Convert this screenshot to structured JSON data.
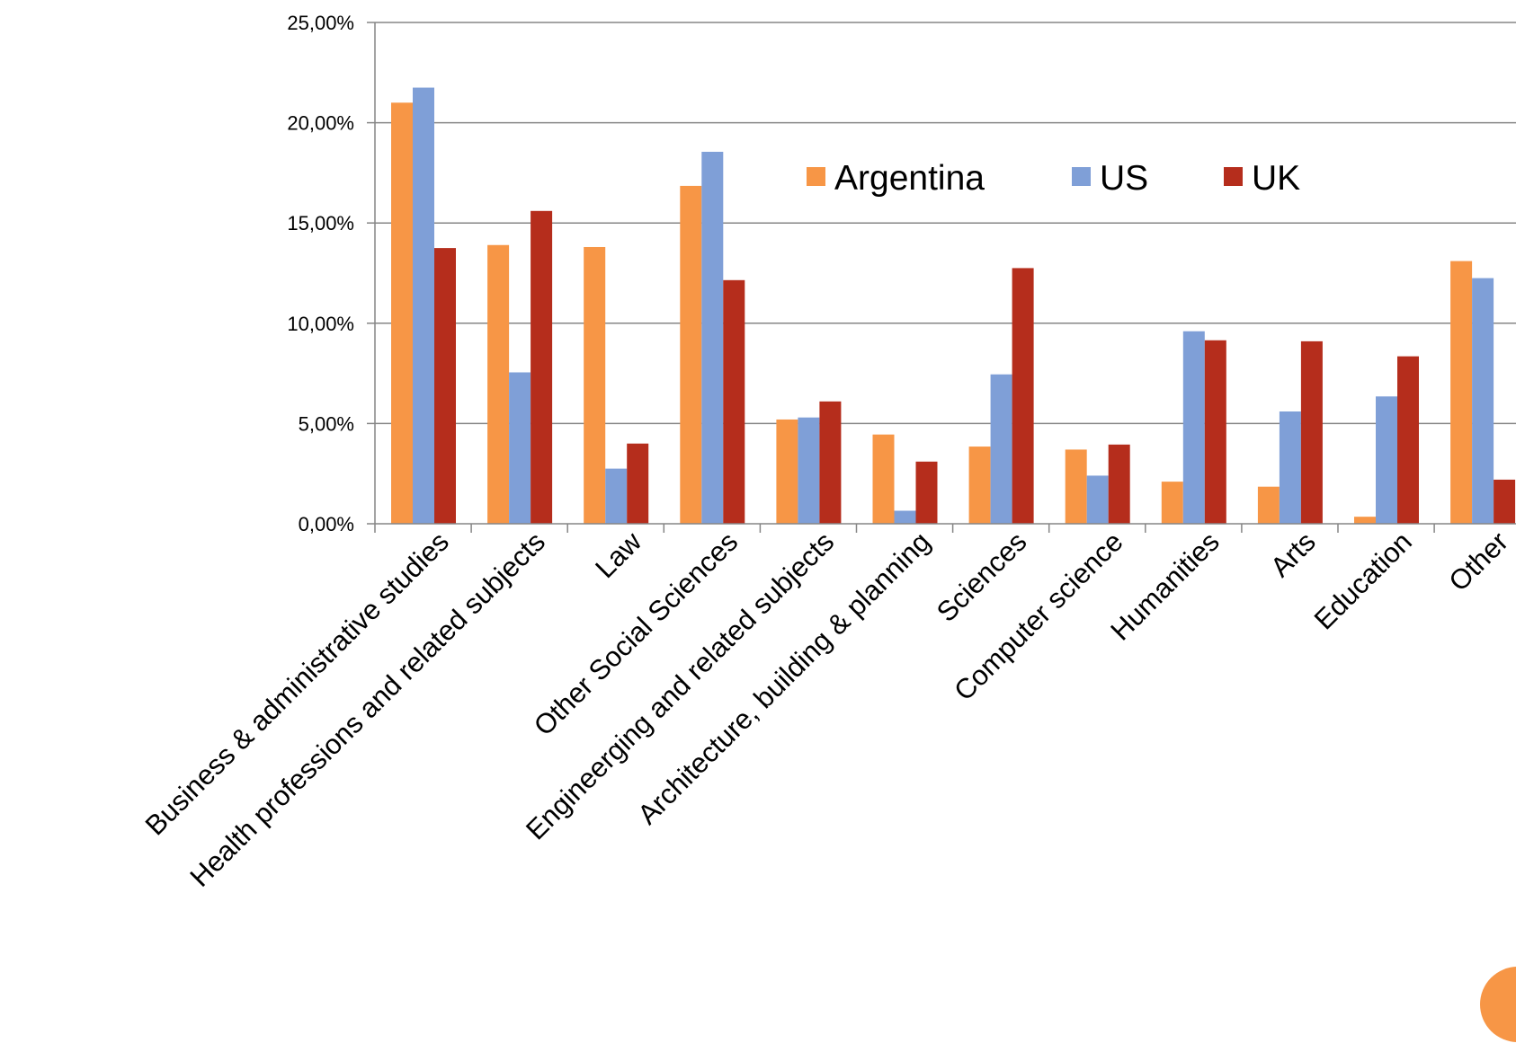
{
  "chart_data": {
    "type": "bar",
    "categories": [
      "Business & administrative studies",
      "Health professions and related subjects",
      "Law",
      "Other Social Sciences",
      "Engineerging and related subjects",
      "Architecture, building & planning",
      "Sciences",
      "Computer science",
      "Humanities",
      "Arts",
      "Education",
      "Other"
    ],
    "series": [
      {
        "name": "Argentina",
        "color": "#F79646",
        "values": [
          21.0,
          13.9,
          13.8,
          16.85,
          5.2,
          4.45,
          3.85,
          3.7,
          2.1,
          1.85,
          0.35,
          13.1
        ]
      },
      {
        "name": "US",
        "color": "#7F9FD7",
        "values": [
          21.75,
          7.55,
          2.75,
          18.55,
          5.3,
          0.65,
          7.45,
          2.4,
          9.6,
          5.6,
          6.35,
          12.25
        ]
      },
      {
        "name": "UK",
        "color": "#B52D1C",
        "values": [
          13.75,
          15.6,
          4.0,
          12.15,
          6.1,
          3.1,
          12.75,
          3.95,
          9.15,
          9.1,
          8.35,
          2.2
        ]
      }
    ],
    "y_ticks": [
      "0,00%",
      "5,00%",
      "10,00%",
      "15,00%",
      "20,00%",
      "25,00%"
    ],
    "ylim": [
      0,
      25
    ],
    "ylabel": "",
    "xlabel": "",
    "title": "",
    "grid": true,
    "legend_position": "top-center"
  },
  "decoration": {
    "corner_circle_color": "#F79646"
  }
}
